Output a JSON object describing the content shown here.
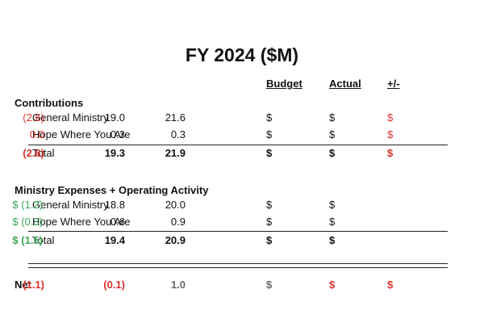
{
  "title": "FY 2024 ($M)",
  "columns": [
    "Budget",
    "Actual",
    "+/-"
  ],
  "sections": [
    {
      "heading": "Contributions",
      "rows": [
        {
          "label": "General Ministry",
          "cells": [
            "$",
            "21.6",
            "$",
            "19.0",
            "$",
            "(2.6)"
          ]
        },
        {
          "label": "Hope Where You Are",
          "cells": [
            "$",
            "0.3",
            "$",
            "0.3",
            "$",
            "0.0"
          ]
        }
      ],
      "total": {
        "label": "Total",
        "cells": [
          "$",
          "21.9",
          "$",
          "19.3",
          "$",
          "(2.6)"
        ]
      }
    },
    {
      "heading": "Ministry Expenses + Operating Activity",
      "rows": [
        {
          "label": "General Ministry",
          "cells": [
            "$",
            "20.0",
            "$",
            "18.8",
            "$ (1.2)"
          ]
        },
        {
          "label": "Hope Where You Are",
          "cells": [
            "$",
            "0.9",
            "$",
            "0.6",
            "$ (0.3)"
          ]
        }
      ],
      "total": {
        "label": "Total",
        "cells": [
          "$",
          "20.9",
          "$",
          "19.4",
          "$ (1.5)"
        ]
      }
    }
  ],
  "net": {
    "label": "Net",
    "cells": [
      "$",
      "1.0",
      "$",
      "(0.1)",
      "$",
      "(1.1)"
    ]
  }
}
